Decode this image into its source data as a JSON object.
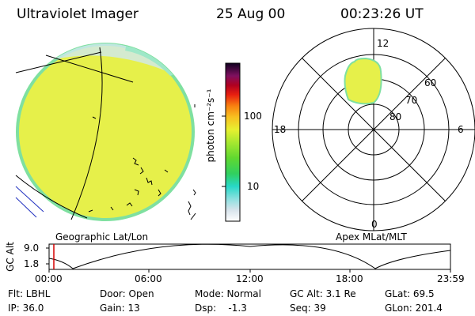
{
  "header": {
    "title": "Ultraviolet Imager",
    "date": "25 Aug 00",
    "time": "00:23:26 UT"
  },
  "colorbar": {
    "label": "photon cm⁻²s⁻¹",
    "ticks": [
      "100",
      "10"
    ]
  },
  "panels": {
    "geo_label": "Geographic Lat/Lon",
    "apex_label": "Apex MLat/MLT"
  },
  "polar": {
    "mlt_labels": {
      "top": "12",
      "bottom": "0",
      "left": "18",
      "right": "6"
    },
    "lat_labels": [
      "60",
      "70",
      "80"
    ]
  },
  "altitude_plot": {
    "ylabel": "GC Alt",
    "yticks": [
      "9.0",
      "1.8"
    ],
    "xticks": [
      "00:00",
      "06:00",
      "12:00",
      "18:00",
      "23:59"
    ],
    "marker_color": "#d40000"
  },
  "info": {
    "flt": "Flt: LBHL",
    "door": "Door: Open",
    "mode": "Mode: Normal",
    "gcalt": "GC Alt: 3.1 Re",
    "glat": "GLat:  69.5",
    "ip": "IP: 36.0",
    "gain": "Gain: 13",
    "dsp": "Dsp:    -1.3",
    "seq": "Seq: 39",
    "glon": "GLon: 201.4"
  },
  "colors": {
    "disk": "#e6f04a",
    "disk_edge": "#7fe0a0",
    "rim": "#c8e8f0"
  }
}
